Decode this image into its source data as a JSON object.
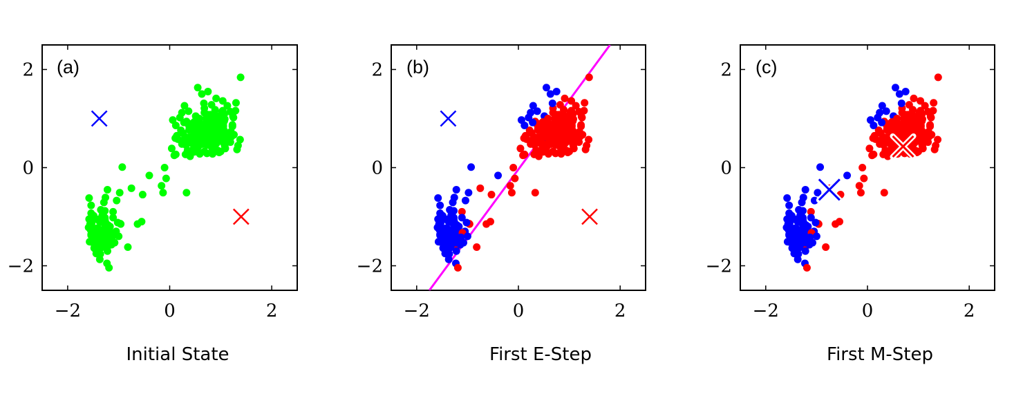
{
  "chart_data": [
    {
      "type": "scatter",
      "panel_label": "(a)",
      "caption": "Initial State",
      "xlim": [
        -2.5,
        2.5
      ],
      "ylim": [
        -2.5,
        2.5
      ],
      "xticks": [
        -2,
        0,
        2
      ],
      "yticks": [
        -2,
        0,
        2
      ],
      "xtick_labels": [
        "−2",
        "0",
        "2"
      ],
      "ytick_labels": [
        "−2",
        "0",
        "2"
      ],
      "point_colors": {
        "unassigned": "#00ff00",
        "cluster1": "#0000ff",
        "cluster2": "#ff0000"
      },
      "points_mode": "unassigned",
      "markers": [
        {
          "x": -1.38,
          "y": 1.0,
          "color": "#0000ff",
          "style": "plain"
        },
        {
          "x": 1.4,
          "y": -1.0,
          "color": "#ff0000",
          "style": "plain"
        }
      ]
    },
    {
      "type": "scatter",
      "panel_label": "(b)",
      "caption": "First E-Step",
      "xlim": [
        -2.5,
        2.5
      ],
      "ylim": [
        -2.5,
        2.5
      ],
      "xticks": [
        -2,
        0,
        2
      ],
      "yticks": [
        -2,
        0,
        2
      ],
      "xtick_labels": [
        "−2",
        "0",
        "2"
      ],
      "ytick_labels": [
        "−2",
        "0",
        "2"
      ],
      "point_colors": {
        "unassigned": "#00ff00",
        "cluster1": "#0000ff",
        "cluster2": "#ff0000"
      },
      "points_mode": "assigned",
      "markers": [
        {
          "x": -1.38,
          "y": 1.0,
          "color": "#0000ff",
          "style": "plain"
        },
        {
          "x": 1.4,
          "y": -1.0,
          "color": "#ff0000",
          "style": "plain"
        }
      ],
      "decision_line": {
        "x1": -1.75,
        "y1": -2.5,
        "x2": 1.8,
        "y2": 2.5,
        "color": "#ff00ff"
      }
    },
    {
      "type": "scatter",
      "panel_label": "(c)",
      "caption": "First M-Step",
      "xlim": [
        -2.5,
        2.5
      ],
      "ylim": [
        -2.5,
        2.5
      ],
      "xticks": [
        -2,
        0,
        2
      ],
      "yticks": [
        -2,
        0,
        2
      ],
      "xtick_labels": [
        "−2",
        "0",
        "2"
      ],
      "ytick_labels": [
        "−2",
        "0",
        "2"
      ],
      "point_colors": {
        "unassigned": "#00ff00",
        "cluster1": "#0000ff",
        "cluster2": "#ff0000"
      },
      "points_mode": "assigned",
      "markers": [
        {
          "x": -0.75,
          "y": -0.45,
          "color": "#0000ff",
          "style": "outlined"
        },
        {
          "x": 0.7,
          "y": 0.43,
          "color": "#ff0000",
          "style": "outlined"
        }
      ]
    }
  ],
  "points": [
    [
      0.68,
      0.33,
      2
    ],
    [
      0.5,
      0.58,
      1
    ],
    [
      0.53,
      0.74,
      2
    ],
    [
      0.94,
      0.84,
      2
    ],
    [
      0.41,
      0.89,
      2
    ],
    [
      -1.29,
      -1.61,
      1
    ],
    [
      0.83,
      0.4,
      2
    ],
    [
      1.01,
      0.82,
      2
    ],
    [
      0.82,
      0.62,
      2
    ],
    [
      0.68,
      1.21,
      2
    ],
    [
      0.87,
      0.32,
      2
    ],
    [
      -1.11,
      -0.9,
      2
    ],
    [
      0.52,
      0.33,
      1
    ],
    [
      1.02,
      0.67,
      2
    ],
    [
      -1.39,
      -1.4,
      1
    ],
    [
      -1.3,
      -1.43,
      1
    ],
    [
      1.05,
      0.85,
      2
    ],
    [
      0.11,
      0.6,
      2
    ],
    [
      -1.18,
      -1.2,
      1
    ],
    [
      -1.49,
      -1.05,
      1
    ],
    [
      0.97,
      0.85,
      2
    ],
    [
      0.09,
      0.25,
      2
    ],
    [
      0.9,
      0.59,
      2
    ],
    [
      1.26,
      0.67,
      2
    ],
    [
      0.91,
      0.52,
      2
    ],
    [
      0.31,
      0.27,
      2
    ],
    [
      0.4,
      0.23,
      2
    ],
    [
      1.01,
      0.7,
      2
    ],
    [
      0.89,
      1.07,
      2
    ],
    [
      -1.18,
      -1.55,
      1
    ],
    [
      1.39,
      1.84,
      2
    ],
    [
      0.84,
      1.02,
      2
    ],
    [
      -1.27,
      -1.16,
      1
    ],
    [
      0.56,
      0.43,
      2
    ],
    [
      -1.39,
      -1.77,
      1
    ],
    [
      -1.33,
      -1.43,
      1
    ],
    [
      0.74,
      0.56,
      2
    ],
    [
      0.58,
      0.86,
      2
    ],
    [
      -1.37,
      -1.87,
      1
    ],
    [
      0.71,
      1.0,
      2
    ],
    [
      1.09,
      0.72,
      2
    ],
    [
      -1.54,
      -1.06,
      1
    ],
    [
      0.81,
      0.6,
      2
    ],
    [
      -1.17,
      -1.54,
      1
    ],
    [
      0.82,
      0.51,
      2
    ],
    [
      -1.56,
      -1.15,
      1
    ],
    [
      1.08,
      0.99,
      2
    ],
    [
      0.51,
      1.05,
      1
    ],
    [
      0.72,
      0.96,
      2
    ],
    [
      -1.08,
      -1.53,
      1
    ],
    [
      1.07,
      1.09,
      2
    ],
    [
      0.38,
      0.77,
      2
    ],
    [
      1.08,
      0.65,
      2
    ],
    [
      0.35,
      0.35,
      2
    ],
    [
      0.06,
      0.97,
      1
    ],
    [
      -1.35,
      -0.86,
      1
    ],
    [
      0.76,
      0.76,
      2
    ],
    [
      0.56,
      0.44,
      2
    ],
    [
      0.9,
      0.62,
      2
    ],
    [
      -1.2,
      -1.59,
      2
    ],
    [
      0.38,
      0.85,
      2
    ],
    [
      1.04,
      1.16,
      2
    ],
    [
      -1.27,
      -1.3,
      1
    ],
    [
      -1.54,
      -0.93,
      1
    ],
    [
      -1.14,
      -1.57,
      1
    ],
    [
      0.24,
      0.48,
      2
    ],
    [
      1.09,
      0.39,
      2
    ],
    [
      0.44,
      0.63,
      2
    ],
    [
      0.28,
      0.57,
      2
    ],
    [
      0.75,
      1.02,
      2
    ],
    [
      -1.24,
      -1.49,
      1
    ],
    [
      0.66,
      0.81,
      2
    ],
    [
      -1.45,
      -1.47,
      1
    ],
    [
      1.34,
      0.45,
      2
    ],
    [
      0.91,
      0.87,
      2
    ],
    [
      -1.04,
      -0.67,
      1
    ],
    [
      0.53,
      0.74,
      2
    ],
    [
      -1.34,
      -1.63,
      1
    ],
    [
      0.3,
      0.5,
      2
    ],
    [
      0.83,
      0.98,
      2
    ],
    [
      0.83,
      0.93,
      2
    ],
    [
      0.59,
      0.28,
      2
    ],
    [
      0.14,
      0.65,
      2
    ],
    [
      1.0,
      0.7,
      2
    ],
    [
      -1.44,
      -1.75,
      1
    ],
    [
      -1.26,
      -1.11,
      1
    ],
    [
      1.2,
      0.73,
      2
    ],
    [
      0.55,
      1.63,
      1
    ],
    [
      -1.11,
      -1.02,
      1
    ],
    [
      0.68,
      1.12,
      2
    ],
    [
      0.91,
      0.54,
      2
    ],
    [
      0.46,
      0.47,
      2
    ],
    [
      1.19,
      1.14,
      2
    ],
    [
      1.01,
      1.07,
      2
    ],
    [
      -1.56,
      -1.19,
      1
    ],
    [
      0.93,
      0.51,
      2
    ],
    [
      0.73,
      0.29,
      2
    ],
    [
      -1.29,
      -0.71,
      1
    ],
    [
      -1.35,
      -1.55,
      1
    ],
    [
      0.61,
      0.65,
      2
    ],
    [
      0.73,
      0.86,
      2
    ],
    [
      0.8,
      0.62,
      2
    ],
    [
      -1.54,
      -0.77,
      1
    ],
    [
      -0.82,
      -1.62,
      2
    ],
    [
      0.92,
      0.71,
      2
    ],
    [
      -1.17,
      -1.2,
      1
    ],
    [
      -1.3,
      -1.51,
      1
    ],
    [
      0.7,
      0.5,
      2
    ],
    [
      -1.44,
      -1.29,
      1
    ],
    [
      0.32,
      0.46,
      2
    ],
    [
      0.93,
      0.96,
      2
    ],
    [
      -1.42,
      -1.73,
      1
    ],
    [
      1.0,
      0.33,
      2
    ],
    [
      0.47,
      0.65,
      2
    ],
    [
      -0.55,
      -1.1,
      2
    ],
    [
      0.84,
      0.28,
      2
    ],
    [
      -1.33,
      -1.28,
      1
    ],
    [
      0.24,
      1.12,
      1
    ],
    [
      -1.43,
      -1.58,
      1
    ],
    [
      0.71,
      0.81,
      2
    ],
    [
      0.33,
      0.94,
      2
    ],
    [
      -1.29,
      -1.07,
      1
    ],
    [
      0.7,
      0.67,
      2
    ],
    [
      -1.21,
      -1.17,
      1
    ],
    [
      0.75,
      1.55,
      1
    ],
    [
      -1.16,
      -1.44,
      1
    ],
    [
      0.68,
      0.61,
      2
    ],
    [
      0.12,
      0.27,
      2
    ],
    [
      0.82,
      0.65,
      2
    ],
    [
      0.78,
      0.46,
      2
    ],
    [
      0.54,
      0.36,
      2
    ],
    [
      -1.57,
      -1.51,
      1
    ],
    [
      -1.35,
      -1.29,
      1
    ],
    [
      -1.32,
      -1.27,
      1
    ],
    [
      0.9,
      0.91,
      2
    ],
    [
      0.86,
      1.07,
      2
    ],
    [
      0.26,
      0.7,
      2
    ],
    [
      -1.5,
      -1.23,
      1
    ],
    [
      0.48,
      0.32,
      2
    ],
    [
      -0.96,
      -1.15,
      2
    ],
    [
      -1.49,
      -0.98,
      1
    ],
    [
      1.05,
      0.57,
      2
    ],
    [
      -1.22,
      -1.53,
      1
    ],
    [
      0.57,
      0.76,
      2
    ],
    [
      1.24,
      1.04,
      2
    ],
    [
      1.12,
      0.63,
      2
    ],
    [
      -1.22,
      -0.45,
      1
    ],
    [
      0.16,
      0.58,
      2
    ],
    [
      0.24,
      0.72,
      2
    ],
    [
      1.22,
      0.66,
      2
    ],
    [
      -1.58,
      -1.05,
      1
    ],
    [
      0.37,
      1.15,
      1
    ],
    [
      -1.36,
      -1.04,
      1
    ],
    [
      0.97,
      0.31,
      2
    ],
    [
      0.63,
      1.5,
      1
    ],
    [
      -1.59,
      -1.22,
      1
    ],
    [
      -1.14,
      -1.51,
      1
    ],
    [
      1.29,
      1.16,
      2
    ],
    [
      -1.36,
      -1.76,
      1
    ],
    [
      0.44,
      0.57,
      2
    ],
    [
      1.05,
      0.83,
      2
    ],
    [
      0.22,
      0.76,
      2
    ],
    [
      0.73,
      0.46,
      2
    ],
    [
      0.2,
      1.02,
      1
    ],
    [
      0.94,
      0.35,
      2
    ],
    [
      0.5,
      0.71,
      2
    ],
    [
      0.99,
      0.56,
      2
    ],
    [
      0.29,
      1.26,
      1
    ],
    [
      -1.34,
      -1.11,
      1
    ],
    [
      0.39,
      0.52,
      2
    ],
    [
      0.62,
      0.75,
      2
    ],
    [
      0.58,
      0.66,
      2
    ],
    [
      0.8,
      0.51,
      2
    ],
    [
      1.02,
      1.06,
      2
    ],
    [
      -1.2,
      -1.25,
      1
    ],
    [
      0.67,
      0.88,
      2
    ],
    [
      0.86,
      0.78,
      2
    ],
    [
      0.91,
      0.49,
      2
    ],
    [
      -0.97,
      -1.14,
      2
    ],
    [
      1.05,
      0.87,
      2
    ],
    [
      1.21,
      0.63,
      2
    ],
    [
      1.23,
      0.87,
      2
    ],
    [
      -1.28,
      -1.48,
      1
    ],
    [
      0.75,
      0.67,
      2
    ],
    [
      -1.02,
      -1.12,
      1
    ],
    [
      0.9,
      0.85,
      2
    ],
    [
      0.64,
      0.48,
      2
    ],
    [
      -1.17,
      -1.46,
      1
    ],
    [
      0.57,
      0.94,
      2
    ],
    [
      0.83,
      0.49,
      2
    ],
    [
      -1.2,
      -1.44,
      1
    ],
    [
      0.28,
      0.92,
      1
    ],
    [
      0.8,
      1.08,
      2
    ],
    [
      -1.27,
      -0.88,
      1
    ],
    [
      -1.38,
      -1.09,
      1
    ],
    [
      0.38,
      0.62,
      2
    ],
    [
      -1.27,
      -1.02,
      1
    ],
    [
      -1.43,
      -1.74,
      1
    ],
    [
      0.44,
      0.35,
      2
    ],
    [
      -1.38,
      -1.62,
      1
    ],
    [
      1.05,
      0.96,
      2
    ],
    [
      -1.41,
      -1.31,
      1
    ],
    [
      -1.27,
      -1.48,
      1
    ],
    [
      0.12,
      0.86,
      1
    ],
    [
      0.56,
      0.68,
      2
    ],
    [
      -1.41,
      -1.23,
      1
    ],
    [
      0.61,
      0.76,
      2
    ],
    [
      -1.13,
      -1.52,
      1
    ],
    [
      0.65,
      0.48,
      2
    ],
    [
      0.91,
      0.69,
      2
    ],
    [
      -1.53,
      -1.36,
      1
    ],
    [
      0.58,
      1.0,
      2
    ],
    [
      0.91,
      1.41,
      2
    ],
    [
      0.86,
      0.4,
      2
    ],
    [
      0.6,
      0.56,
      2
    ],
    [
      0.78,
      0.69,
      2
    ],
    [
      -1.41,
      -1.06,
      1
    ],
    [
      0.87,
      0.51,
      2
    ],
    [
      -1.32,
      -1.58,
      1
    ],
    [
      0.32,
      0.62,
      2
    ],
    [
      -1.54,
      -1.36,
      1
    ],
    [
      -0.63,
      -1.15,
      2
    ],
    [
      0.74,
      0.84,
      2
    ],
    [
      1.07,
      0.95,
      2
    ],
    [
      -1.32,
      -0.97,
      1
    ],
    [
      0.61,
      0.82,
      2
    ],
    [
      1.04,
      1.36,
      2
    ],
    [
      -1.35,
      -1.6,
      1
    ],
    [
      1.19,
      0.52,
      2
    ],
    [
      -1.19,
      -1.36,
      1
    ],
    [
      0.84,
      0.69,
      2
    ],
    [
      1.25,
      1.02,
      2
    ],
    [
      1.07,
      0.48,
      2
    ],
    [
      0.73,
      0.87,
      2
    ],
    [
      0.97,
      0.64,
      2
    ],
    [
      1.02,
      0.7,
      2
    ],
    [
      0.82,
      1.28,
      2
    ],
    [
      -1.25,
      -1.44,
      1
    ],
    [
      1.1,
      0.63,
      2
    ],
    [
      0.75,
      1.08,
      2
    ],
    [
      0.72,
      0.69,
      2
    ],
    [
      0.91,
      0.62,
      2
    ],
    [
      -1.22,
      -1.7,
      1
    ],
    [
      0.78,
      0.82,
      2
    ],
    [
      0.91,
      0.57,
      2
    ],
    [
      0.47,
      0.6,
      2
    ],
    [
      -1.27,
      -1.05,
      1
    ],
    [
      -1.53,
      -1.13,
      1
    ],
    [
      -1.27,
      -1.34,
      1
    ],
    [
      -1.05,
      -1.3,
      1
    ],
    [
      1.08,
      0.44,
      2
    ],
    [
      0.7,
      0.57,
      2
    ],
    [
      -1.46,
      -1.42,
      1
    ],
    [
      -1.29,
      -1.32,
      1
    ],
    [
      -1.37,
      -1.34,
      1
    ],
    [
      -1.23,
      -1.29,
      1
    ],
    [
      -1.14,
      -1.39,
      1
    ],
    [
      -1.39,
      -1.53,
      1
    ],
    [
      0.56,
      0.84,
      2
    ],
    [
      0.93,
      0.82,
      2
    ],
    [
      -1.52,
      -1.52,
      1
    ],
    [
      0.67,
      1.31,
      1
    ],
    [
      0.82,
      0.74,
      2
    ],
    [
      -1.23,
      -1.34,
      1
    ],
    [
      0.97,
      1.02,
      2
    ],
    [
      1.38,
      0.57,
      2
    ],
    [
      0.84,
      0.75,
      2
    ],
    [
      -1.1,
      -1.33,
      2
    ],
    [
      0.41,
      0.57,
      2
    ],
    [
      1.04,
      0.93,
      2
    ],
    [
      -1.27,
      -1.1,
      1
    ],
    [
      0.98,
      0.72,
      2
    ],
    [
      1.02,
      1.13,
      2
    ],
    [
      -1.46,
      -1.04,
      1
    ],
    [
      -1.55,
      -1.27,
      1
    ],
    [
      1.23,
      0.84,
      2
    ],
    [
      0.96,
      0.82,
      2
    ],
    [
      1.13,
      1.26,
      2
    ],
    [
      -1.0,
      -1.4,
      1
    ],
    [
      0.67,
      0.61,
      2
    ],
    [
      -1.36,
      -1.4,
      1
    ],
    [
      1.3,
      1.32,
      2
    ],
    [
      0.48,
      0.93,
      2
    ],
    [
      0.53,
      0.83,
      2
    ],
    [
      0.82,
      0.77,
      2
    ],
    [
      0.5,
      0.47,
      2
    ],
    [
      -0.98,
      -0.51,
      1
    ],
    [
      0.94,
      0.63,
      2
    ],
    [
      -1.48,
      -1.64,
      1
    ],
    [
      0.84,
      0.81,
      2
    ],
    [
      -1.26,
      -0.61,
      1
    ],
    [
      -1.58,
      -0.62,
      1
    ],
    [
      -1.37,
      -1.65,
      1
    ],
    [
      1.03,
      0.73,
      2
    ],
    [
      -1.15,
      -1.53,
      1
    ],
    [
      -1.33,
      -1.37,
      1
    ],
    [
      0.92,
      0.74,
      2
    ],
    [
      0.84,
      0.79,
      2
    ],
    [
      -1.23,
      -1.95,
      1
    ],
    [
      0.68,
      0.88,
      2
    ],
    [
      0.66,
      0.68,
      2
    ],
    [
      0.55,
      0.67,
      2
    ],
    [
      0.89,
      1.18,
      2
    ],
    [
      1.04,
      0.6,
      2
    ],
    [
      -1.35,
      -1.28,
      1
    ],
    [
      0.99,
      0.73,
      2
    ],
    [
      0.73,
      0.57,
      2
    ],
    [
      -1.19,
      -2.04,
      2
    ],
    [
      -1.54,
      -1.38,
      1
    ],
    [
      1.07,
      0.75,
      2
    ],
    [
      -1.29,
      -1.51,
      1
    ],
    [
      0.68,
      0.56,
      2
    ],
    [
      1.32,
      0.37,
      2
    ],
    [
      1.08,
      0.6,
      2
    ],
    [
      0.86,
      0.84,
      2
    ],
    [
      -1.13,
      -1.42,
      1
    ],
    [
      0.58,
      0.76,
      2
    ],
    [
      0.98,
      0.79,
      2
    ],
    [
      0.49,
      0.79,
      2
    ],
    [
      -0.16,
      -0.37,
      2
    ],
    [
      -0.13,
      -0.51,
      2
    ],
    [
      0.04,
      0.39,
      2
    ],
    [
      -0.4,
      -0.16,
      1
    ],
    [
      -0.07,
      -0.22,
      2
    ],
    [
      0.33,
      -0.51,
      2
    ],
    [
      -0.53,
      -0.55,
      2
    ],
    [
      -0.1,
      0.0,
      2
    ],
    [
      -0.93,
      0.01,
      1
    ],
    [
      -0.75,
      -0.42,
      2
    ]
  ]
}
